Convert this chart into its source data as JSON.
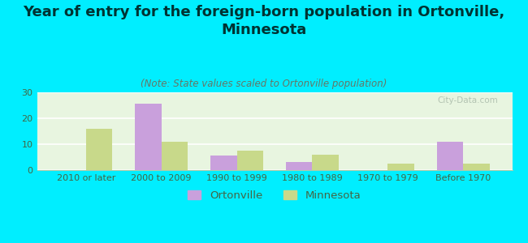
{
  "title": "Year of entry for the foreign-born population in Ortonville,\nMinnesota",
  "subtitle": "(Note: State values scaled to Ortonville population)",
  "categories": [
    "2010 or later",
    "2000 to 2009",
    "1990 to 1999",
    "1980 to 1989",
    "1970 to 1979",
    "Before 1970"
  ],
  "ortonville_values": [
    0,
    25.5,
    5.5,
    3.0,
    0,
    11
  ],
  "minnesota_values": [
    16,
    11,
    7.5,
    6,
    2.5,
    2.5
  ],
  "ortonville_color": "#c9a0dc",
  "minnesota_color": "#c8d98a",
  "background_color": "#00eeff",
  "plot_bg_top": "#e8f5e8",
  "plot_bg_bottom": "#d0ead0",
  "ylim": [
    0,
    30
  ],
  "yticks": [
    0,
    10,
    20,
    30
  ],
  "bar_width": 0.35,
  "title_fontsize": 13,
  "subtitle_fontsize": 8.5,
  "tick_fontsize": 8,
  "legend_fontsize": 9.5,
  "watermark": "City-Data.com"
}
